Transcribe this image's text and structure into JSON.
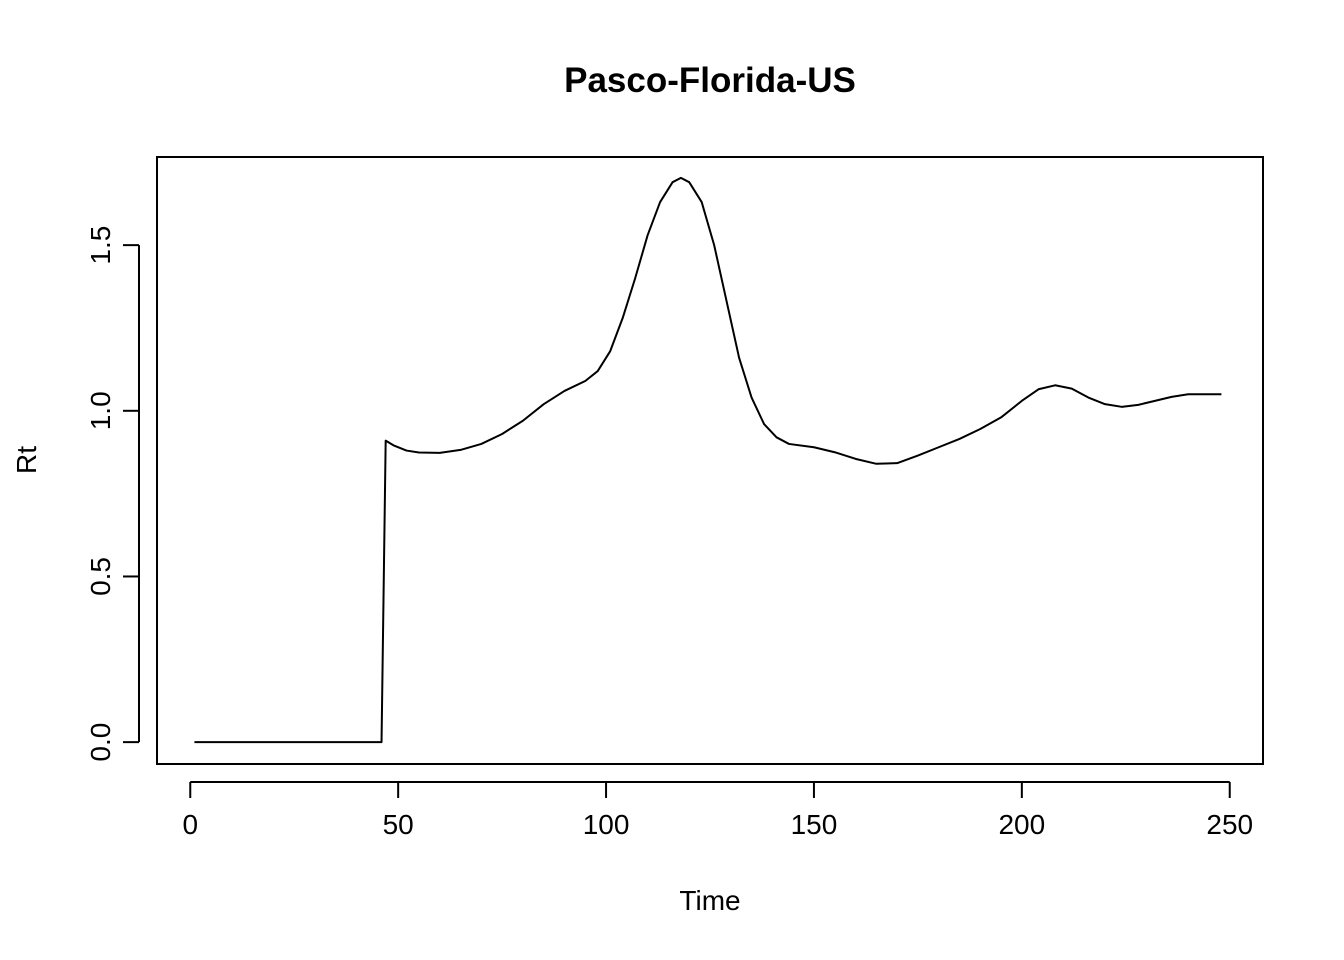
{
  "chart_data": {
    "type": "line",
    "title": "Pasco-Florida-US",
    "xlabel": "Time",
    "ylabel": "Rt",
    "xlim": [
      -8,
      258
    ],
    "ylim": [
      -0.066,
      1.766
    ],
    "x_ticks": [
      0,
      50,
      100,
      150,
      200,
      250
    ],
    "y_ticks": [
      0.0,
      0.5,
      1.0,
      1.5
    ],
    "x_tick_labels": [
      "0",
      "50",
      "100",
      "150",
      "200",
      "250"
    ],
    "y_tick_labels": [
      "0.0",
      "0.5",
      "1.0",
      "1.5"
    ],
    "grid": false,
    "series": [
      {
        "color": "#000000",
        "points": [
          [
            1,
            0.0
          ],
          [
            10,
            0.0
          ],
          [
            20,
            0.0
          ],
          [
            30,
            0.0
          ],
          [
            40,
            0.0
          ],
          [
            46,
            0.0
          ],
          [
            47,
            0.91
          ],
          [
            49,
            0.895
          ],
          [
            52,
            0.88
          ],
          [
            55,
            0.874
          ],
          [
            60,
            0.873
          ],
          [
            65,
            0.882
          ],
          [
            70,
            0.9
          ],
          [
            75,
            0.93
          ],
          [
            80,
            0.97
          ],
          [
            85,
            1.02
          ],
          [
            90,
            1.06
          ],
          [
            95,
            1.09
          ],
          [
            98,
            1.12
          ],
          [
            101,
            1.18
          ],
          [
            104,
            1.28
          ],
          [
            107,
            1.4
          ],
          [
            110,
            1.53
          ],
          [
            113,
            1.63
          ],
          [
            116,
            1.69
          ],
          [
            118,
            1.703
          ],
          [
            120,
            1.69
          ],
          [
            123,
            1.63
          ],
          [
            126,
            1.5
          ],
          [
            129,
            1.33
          ],
          [
            132,
            1.16
          ],
          [
            135,
            1.04
          ],
          [
            138,
            0.96
          ],
          [
            141,
            0.92
          ],
          [
            144,
            0.9
          ],
          [
            150,
            0.89
          ],
          [
            155,
            0.875
          ],
          [
            160,
            0.855
          ],
          [
            165,
            0.84
          ],
          [
            170,
            0.842
          ],
          [
            175,
            0.865
          ],
          [
            180,
            0.89
          ],
          [
            185,
            0.915
          ],
          [
            190,
            0.945
          ],
          [
            195,
            0.98
          ],
          [
            200,
            1.03
          ],
          [
            204,
            1.065
          ],
          [
            208,
            1.077
          ],
          [
            212,
            1.067
          ],
          [
            216,
            1.04
          ],
          [
            220,
            1.02
          ],
          [
            224,
            1.012
          ],
          [
            228,
            1.018
          ],
          [
            232,
            1.03
          ],
          [
            236,
            1.042
          ],
          [
            240,
            1.05
          ],
          [
            244,
            1.05
          ],
          [
            248,
            1.05
          ]
        ]
      }
    ]
  }
}
